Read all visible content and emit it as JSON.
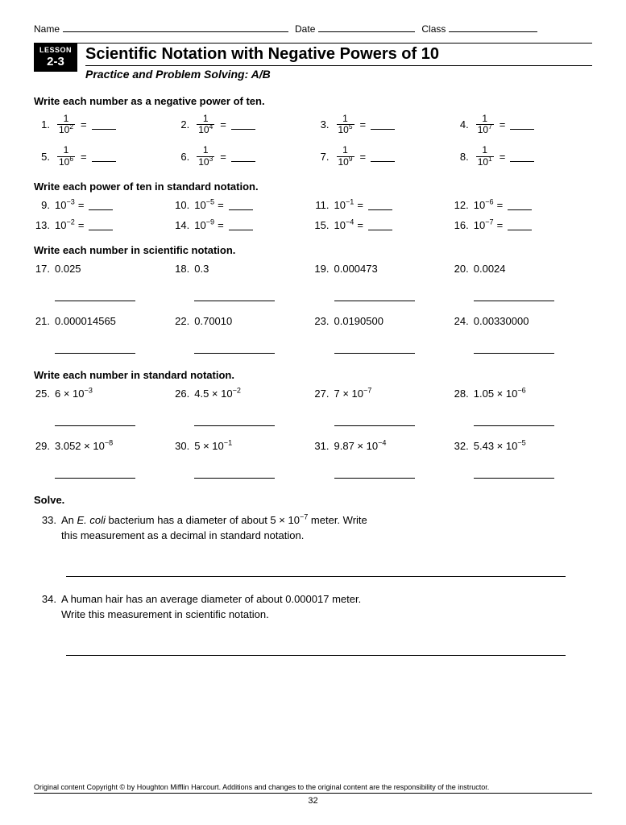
{
  "header": {
    "name_label": "Name",
    "date_label": "Date",
    "class_label": "Class",
    "name_width": 280,
    "date_width": 120,
    "class_width": 110
  },
  "lesson": {
    "label": "LESSON",
    "number": "2-3",
    "title": "Scientific Notation with Negative Powers of 10",
    "subtitle": "Practice and Problem Solving: A/B"
  },
  "section1": {
    "heading": "Write each number as a negative power of ten.",
    "items": [
      {
        "n": "1.",
        "exp": "2"
      },
      {
        "n": "2.",
        "exp": "4"
      },
      {
        "n": "3.",
        "exp": "5"
      },
      {
        "n": "4.",
        "exp": "7"
      },
      {
        "n": "5.",
        "exp": "6"
      },
      {
        "n": "6.",
        "exp": "3"
      },
      {
        "n": "7.",
        "exp": "9"
      },
      {
        "n": "8.",
        "exp": "1"
      }
    ]
  },
  "section2": {
    "heading": "Write each power of ten in standard notation.",
    "items": [
      {
        "n": "9.",
        "exp": "−3"
      },
      {
        "n": "10.",
        "exp": "−5"
      },
      {
        "n": "11.",
        "exp": "−1"
      },
      {
        "n": "12.",
        "exp": "−6"
      },
      {
        "n": "13.",
        "exp": "−2"
      },
      {
        "n": "14.",
        "exp": "−9"
      },
      {
        "n": "15.",
        "exp": "−4"
      },
      {
        "n": "16.",
        "exp": "−7"
      }
    ]
  },
  "section3": {
    "heading": "Write each number in scientific notation.",
    "items": [
      {
        "n": "17.",
        "val": "0.025"
      },
      {
        "n": "18.",
        "val": "0.3"
      },
      {
        "n": "19.",
        "val": "0.000473"
      },
      {
        "n": "20.",
        "val": "0.0024"
      },
      {
        "n": "21.",
        "val": "0.000014565"
      },
      {
        "n": "22.",
        "val": "0.70010"
      },
      {
        "n": "23.",
        "val": "0.0190500"
      },
      {
        "n": "24.",
        "val": "0.00330000"
      }
    ]
  },
  "section4": {
    "heading": "Write each number in standard notation.",
    "items": [
      {
        "n": "25.",
        "coef": "6",
        "exp": "−3"
      },
      {
        "n": "26.",
        "coef": "4.5",
        "exp": "−2"
      },
      {
        "n": "27.",
        "coef": "7",
        "exp": "−7"
      },
      {
        "n": "28.",
        "coef": "1.05",
        "exp": "−6"
      },
      {
        "n": "29.",
        "coef": "3.052",
        "exp": "−8"
      },
      {
        "n": "30.",
        "coef": "5",
        "exp": "−1"
      },
      {
        "n": "31.",
        "coef": "9.87",
        "exp": "−4"
      },
      {
        "n": "32.",
        "coef": "5.43",
        "exp": "−5"
      }
    ]
  },
  "section5": {
    "heading": "Solve.",
    "q33": {
      "n": "33.",
      "line1_a": "An ",
      "line1_ital": "E. coli",
      "line1_b": " bacterium has a diameter of about 5 × 10",
      "line1_exp": "−7",
      "line1_c": " meter. Write",
      "line2": "this measurement as a decimal in standard notation."
    },
    "q34": {
      "n": "34.",
      "line1": "A human hair has an average diameter of about 0.000017 meter.",
      "line2": "Write this measurement in scientific notation."
    }
  },
  "footer": {
    "copyright": "Original content Copyright © by Houghton Mifflin Harcourt. Additions and changes to the original content are the responsibility of the instructor.",
    "page": "32"
  }
}
